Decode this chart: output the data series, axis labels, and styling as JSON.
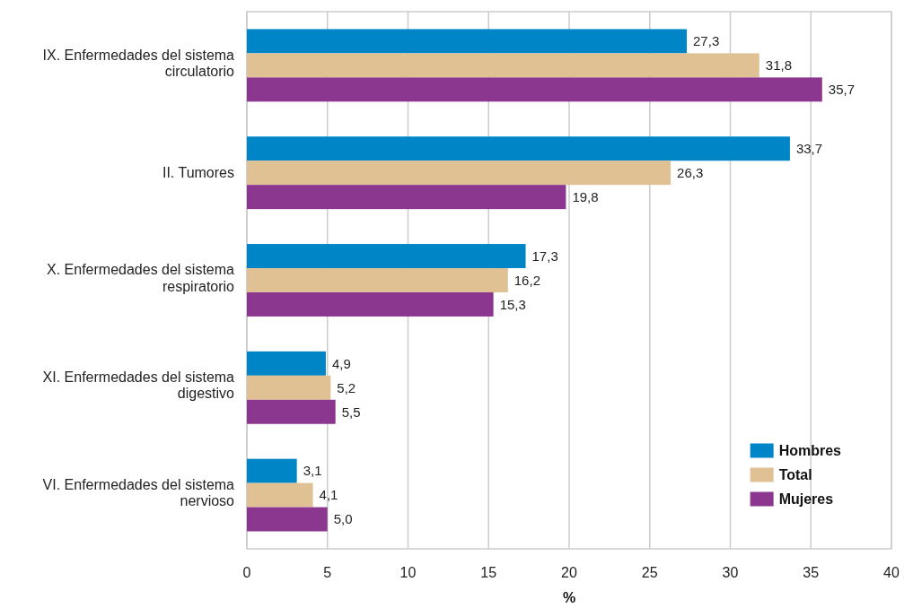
{
  "chart_data": {
    "type": "bar",
    "orientation": "horizontal",
    "categories": [
      "IX. Enfermedades del sistema circulatorio",
      "II. Tumores",
      "X. Enfermedades del sistema respiratorio",
      "XI. Enfermedades del sistema digestivo",
      "VI. Enfermedades del sistema nervioso"
    ],
    "series": [
      {
        "name": "Hombres",
        "color": "#0085c7",
        "values": [
          27.3,
          33.7,
          17.3,
          4.9,
          3.1
        ],
        "value_labels": [
          "27,3",
          "33,7",
          "17,3",
          "4,9",
          "3,1"
        ]
      },
      {
        "name": "Total",
        "color": "#e0c194",
        "values": [
          31.8,
          26.3,
          16.2,
          5.2,
          4.1
        ],
        "value_labels": [
          "31,8",
          "26,3",
          "16,2",
          "5,2",
          "4,1"
        ]
      },
      {
        "name": "Mujeres",
        "color": "#8b3790",
        "values": [
          35.7,
          19.8,
          15.3,
          5.5,
          5.0
        ],
        "value_labels": [
          "35,7",
          "19,8",
          "15,3",
          "5,5",
          "5,0"
        ]
      }
    ],
    "xlim": [
      0,
      40
    ],
    "xticks": [
      0,
      5,
      10,
      15,
      20,
      25,
      30,
      35,
      40
    ],
    "xlabel": "%",
    "grid": "x",
    "legend": "bottom right"
  }
}
